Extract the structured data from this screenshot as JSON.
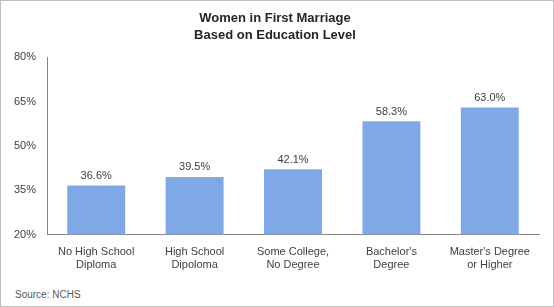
{
  "chart_data": {
    "type": "bar",
    "title": "Women in First Marriage",
    "subtitle": "Based on Education Level",
    "annotations": [
      "Source:  NCHS"
    ],
    "categories": [
      "No High School Diploma",
      "High School Dipoloma",
      "Some College, No Degree",
      "Bachelor's Degree",
      "Master's Degree or Higher"
    ],
    "values": [
      36.6,
      39.5,
      42.1,
      58.3,
      63.0
    ],
    "value_labels": [
      "36.6%",
      "39.5%",
      "42.1%",
      "58.3%",
      "63.0%"
    ],
    "data_labels": true,
    "color": "#7ea8e6",
    "ylim": [
      20,
      80
    ],
    "yticks": [
      {
        "value": 20,
        "label": "20%"
      },
      {
        "value": 35,
        "label": "35%"
      },
      {
        "value": 50,
        "label": "50%"
      },
      {
        "value": 65,
        "label": "65%"
      },
      {
        "value": 80,
        "label": "80%"
      }
    ],
    "grid": false
  }
}
